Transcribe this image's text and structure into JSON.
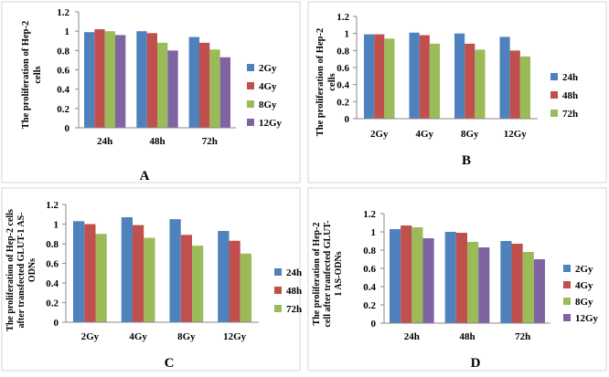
{
  "colors": {
    "s1": "#4F81BD",
    "s2": "#C0504D",
    "s3": "#9BBB59",
    "s4": "#8064A2",
    "axis": "#888888"
  },
  "chart_data": [
    {
      "type": "bar",
      "panel_label": "A",
      "ylabel": "The  proliferation of Hep-2 cells",
      "ylim": [
        0,
        1.2
      ],
      "yticks": [
        "0",
        "0.2",
        "0.4",
        "0.6",
        "0.8",
        "1",
        "1.2"
      ],
      "categories": [
        "24h",
        "48h",
        "72h"
      ],
      "legend_position": "right",
      "series": [
        {
          "name": "2Gy",
          "values": [
            0.99,
            1.0,
            0.94
          ]
        },
        {
          "name": "4Gy",
          "values": [
            1.02,
            0.98,
            0.88
          ]
        },
        {
          "name": "8Gy",
          "values": [
            1.0,
            0.88,
            0.81
          ]
        },
        {
          "name": "12Gy",
          "values": [
            0.96,
            0.8,
            0.73
          ]
        }
      ]
    },
    {
      "type": "bar",
      "panel_label": "B",
      "ylabel": "The  proliferation of Hep-2 cells",
      "ylim": [
        0,
        1.2
      ],
      "yticks": [
        "0",
        "0.2",
        "0.4",
        "0.6",
        "0.8",
        "1",
        "1.2"
      ],
      "categories": [
        "2Gy",
        "4Gy",
        "8Gy",
        "12Gy"
      ],
      "legend_position": "right",
      "series": [
        {
          "name": "24h",
          "values": [
            0.99,
            1.01,
            1.0,
            0.96
          ]
        },
        {
          "name": "48h",
          "values": [
            0.99,
            0.98,
            0.88,
            0.8
          ]
        },
        {
          "name": "72h",
          "values": [
            0.94,
            0.88,
            0.81,
            0.73
          ]
        }
      ]
    },
    {
      "type": "bar",
      "panel_label": "C",
      "ylabel": "The proliferation of Hep-2 cells after transfected GLUT-1 AS-ODNs",
      "ylim": [
        0,
        1.2
      ],
      "yticks": [
        "0",
        "0.2",
        "0.4",
        "0.6",
        "0.8",
        "1",
        "1.2"
      ],
      "categories": [
        "2Gy",
        "4Gy",
        "8Gy",
        "12Gy"
      ],
      "legend_position": "right",
      "series": [
        {
          "name": "24h",
          "values": [
            1.03,
            1.07,
            1.05,
            0.93
          ]
        },
        {
          "name": "48h",
          "values": [
            1.0,
            0.99,
            0.89,
            0.83
          ]
        },
        {
          "name": "72h",
          "values": [
            0.9,
            0.86,
            0.78,
            0.7
          ]
        }
      ]
    },
    {
      "type": "bar",
      "panel_label": "D",
      "ylabel": "The proliferation of Hep-2 cell after tranfected GLUT-1 AS-ODNs",
      "ylim": [
        0,
        1.2
      ],
      "yticks": [
        "0",
        "0.2",
        "0.4",
        "0.6",
        "0.8",
        "1",
        "1.2"
      ],
      "categories": [
        "24h",
        "48h",
        "72h"
      ],
      "legend_position": "right",
      "series": [
        {
          "name": "2Gy",
          "values": [
            1.03,
            1.0,
            0.9
          ]
        },
        {
          "name": "4Gy",
          "values": [
            1.07,
            0.99,
            0.87
          ]
        },
        {
          "name": "8Gy",
          "values": [
            1.05,
            0.89,
            0.78
          ]
        },
        {
          "name": "12Gy",
          "values": [
            0.93,
            0.83,
            0.7
          ]
        }
      ]
    }
  ]
}
